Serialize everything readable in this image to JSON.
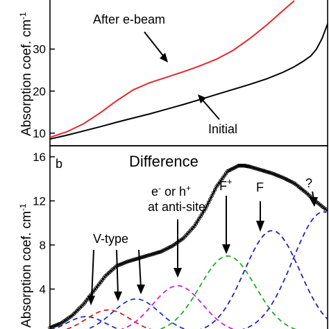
{
  "chart_data": [
    {
      "id": "panel-a",
      "type": "line",
      "ylabel": "Absorption coef. cm",
      "ylabel_sup": "-1",
      "ylim": [
        7,
        42
      ],
      "yticks": [
        10,
        20,
        30
      ],
      "xlim": [
        0,
        1
      ],
      "grid": false,
      "series": [
        {
          "name": "After e-beam",
          "color": "#e8262b",
          "x": [
            0,
            0.06,
            0.12,
            0.18,
            0.24,
            0.3,
            0.36,
            0.42,
            0.48,
            0.54,
            0.6,
            0.66,
            0.72,
            0.78,
            0.84,
            0.88
          ],
          "y": [
            9,
            10.3,
            12.2,
            14.8,
            17.7,
            20.3,
            22,
            23.3,
            24.6,
            26,
            27.6,
            29.7,
            32.5,
            35.7,
            39.2,
            41.5
          ]
        },
        {
          "name": "Initial",
          "color": "#000000",
          "x": [
            0,
            0.06,
            0.12,
            0.18,
            0.24,
            0.3,
            0.36,
            0.42,
            0.48,
            0.54,
            0.6,
            0.66,
            0.72,
            0.78,
            0.84,
            0.88,
            0.91,
            0.94,
            0.96,
            0.98,
            1.0
          ],
          "y": [
            8.6,
            9.5,
            10.5,
            11.5,
            12.6,
            13.6,
            14.6,
            15.7,
            16.8,
            18,
            19.2,
            20.4,
            21.6,
            22.9,
            24.5,
            25.8,
            27,
            28.4,
            30,
            32.5,
            36
          ]
        }
      ],
      "annotations": [
        {
          "text": "After e-beam",
          "target_series": "After e-beam"
        },
        {
          "text": "Initial",
          "target_series": "Initial"
        }
      ]
    },
    {
      "id": "panel-b",
      "panel_label": "b",
      "type": "line",
      "title": "Difference",
      "ylabel": "Absorption coef. cm",
      "ylabel_sup": "-1",
      "ylim": [
        0,
        17
      ],
      "yticks": [
        0,
        4,
        8,
        12,
        16
      ],
      "xlim": [
        0,
        1
      ],
      "grid": false,
      "series": [
        {
          "name": "Difference (measured)",
          "color": "#000000",
          "marker": "circle",
          "x": [
            0,
            0.04,
            0.08,
            0.12,
            0.16,
            0.2,
            0.24,
            0.28,
            0.32,
            0.36,
            0.4,
            0.44,
            0.48,
            0.52,
            0.56,
            0.6,
            0.64,
            0.68,
            0.7,
            0.72,
            0.76,
            0.8,
            0.84,
            0.88,
            0.92,
            0.96,
            1.0
          ],
          "y": [
            0.5,
            0.9,
            1.6,
            2.6,
            3.9,
            5.2,
            6.1,
            6.5,
            6.8,
            7.1,
            7.4,
            7.9,
            8.6,
            9.7,
            11.3,
            13.3,
            14.7,
            15.2,
            15.2,
            15.1,
            14.8,
            14.5,
            14.1,
            13.6,
            12.8,
            11.9,
            11.1
          ]
        },
        {
          "name": "Fit (sum)",
          "color": "#000000",
          "x": [
            0,
            0.04,
            0.08,
            0.12,
            0.16,
            0.2,
            0.24,
            0.28,
            0.32,
            0.36,
            0.4,
            0.44,
            0.48,
            0.52,
            0.56,
            0.6,
            0.64,
            0.68,
            0.7,
            0.72,
            0.76,
            0.8,
            0.84,
            0.88,
            0.92,
            0.96,
            1.0
          ],
          "y": [
            0.5,
            0.9,
            1.6,
            2.6,
            3.9,
            5.2,
            6.1,
            6.5,
            6.8,
            7.1,
            7.4,
            7.9,
            8.6,
            9.7,
            11.3,
            13.3,
            14.7,
            15.2,
            15.2,
            15.1,
            14.8,
            14.5,
            14.1,
            13.6,
            12.8,
            11.9,
            11.1
          ]
        }
      ],
      "components": [
        {
          "color": "#2222cc",
          "center": 0.13,
          "amp": 1.5,
          "width": 0.07
        },
        {
          "color": "#cc2222",
          "center": 0.21,
          "amp": 2.1,
          "width": 0.08
        },
        {
          "color": "#2233bb",
          "center": 0.31,
          "amp": 3.1,
          "width": 0.085
        },
        {
          "color": "#cc22cc",
          "center": 0.46,
          "amp": 4.3,
          "width": 0.09
        },
        {
          "color": "#22aa22",
          "center": 0.64,
          "amp": 7.0,
          "width": 0.1
        },
        {
          "color": "#2222aa",
          "center": 0.8,
          "amp": 9.3,
          "width": 0.1
        },
        {
          "color": "#2222cc",
          "center": 0.985,
          "amp": 11.0,
          "width": 0.11
        }
      ],
      "annotations": [
        {
          "text": "V-type"
        },
        {
          "text": "e"
        },
        {
          "text": "-"
        },
        {
          "text": " or h"
        },
        {
          "text": "+"
        },
        {
          "text": "at anti-site"
        },
        {
          "text": "F"
        },
        {
          "text": "+"
        },
        {
          "text": "F"
        },
        {
          "text": "?"
        }
      ]
    }
  ]
}
